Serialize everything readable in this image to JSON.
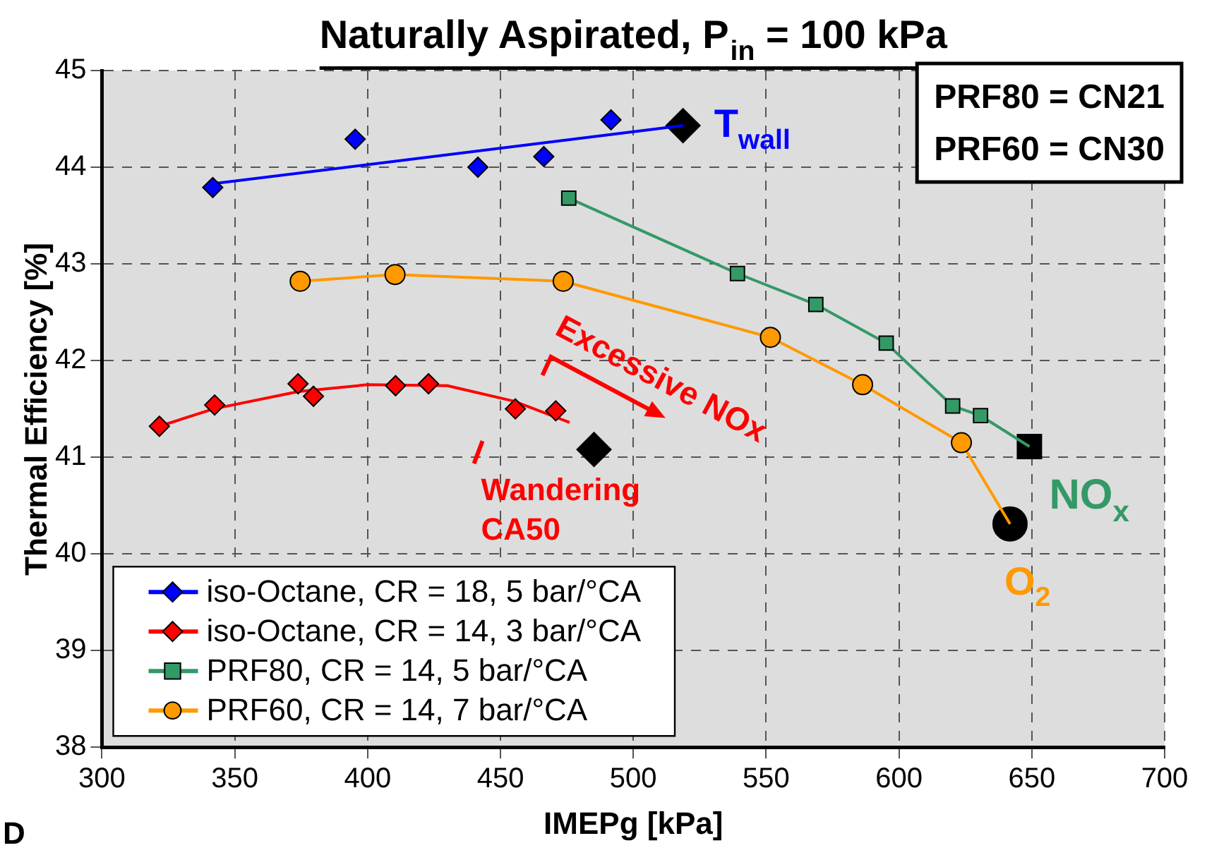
{
  "chart_data": {
    "type": "line",
    "title": "Naturally Aspirated, P$_{in}$ = 100 kPa",
    "xlabel": "IMEPg [kPa]",
    "ylabel": "Thermal Efficiency [%]",
    "xlim": [
      300,
      700
    ],
    "xticks": [
      300,
      350,
      400,
      450,
      500,
      550,
      600,
      650,
      700
    ],
    "ylim": [
      38,
      45
    ],
    "yticks": [
      38,
      39,
      40,
      41,
      42,
      43,
      44,
      45
    ],
    "grid": true,
    "legend": "bottom left",
    "series": [
      {
        "name": "iso-Octane, CR = 18, 5 bar/°CA",
        "type": "scatter",
        "marker": "diamond",
        "color": "#0000ff",
        "x": [
          341.7,
          395.3,
          441.5,
          466.3,
          491.6
        ],
        "values": [
          43.79,
          44.29,
          44.0,
          44.11,
          44.49
        ]
      },
      {
        "marker": "none",
        "color": "#0000ff",
        "x": [
          342,
          518.7
        ],
        "values": [
          43.83,
          44.43
        ]
      },
      {
        "name": "iso-Octane, CR = 14, 3 bar/°CA",
        "type": "scatter",
        "marker": "diamond",
        "color": "#ff0000",
        "x": [
          321.6,
          342.4,
          373.8,
          379.6,
          410.5,
          422.9,
          455.6,
          470.8
        ],
        "values": [
          41.32,
          41.54,
          41.76,
          41.63,
          41.74,
          41.76,
          41.5,
          41.48
        ]
      },
      {
        "marker": "none",
        "color": "#ff0000",
        "x": [
          321.6,
          342,
          374,
          400,
          430,
          455,
          476
        ],
        "values": [
          41.32,
          41.5,
          41.68,
          41.75,
          41.74,
          41.58,
          41.36
        ]
      },
      {
        "name": "PRF80, CR = 14, 5 bar/°CA",
        "marker": "square",
        "color": "#339966",
        "x": [
          475.7,
          539.2,
          568.7,
          595.2,
          620.2,
          630.7
        ],
        "values": [
          43.68,
          42.9,
          42.58,
          42.18,
          41.53,
          41.43
        ]
      },
      {
        "marker": "none",
        "color": "#339966",
        "x": [
          630.7,
          649.1
        ],
        "values": [
          41.43,
          41.11
        ]
      },
      {
        "name": "PRF60, CR = 14, 7 bar/°CA",
        "marker": "circle",
        "color": "#ff9900",
        "x": [
          374.6,
          410.3,
          473.6,
          551.6,
          586.3,
          623.5
        ],
        "values": [
          42.82,
          42.89,
          42.82,
          42.24,
          41.75,
          41.15
        ]
      },
      {
        "marker": "none",
        "color": "#ff9900",
        "x": [
          623.5,
          641.8
        ],
        "values": [
          41.15,
          40.31
        ]
      },
      {
        "type": "scatter",
        "marker": "diamond",
        "color": "#000000",
        "x": [
          518.7,
          485.2
        ],
        "values": [
          44.43,
          41.08
        ]
      },
      {
        "type": "scatter",
        "marker": "square",
        "color": "#000000",
        "x": [
          649.1
        ],
        "values": [
          41.11
        ]
      },
      {
        "type": "scatter",
        "marker": "circle",
        "color": "#000000",
        "x": [
          641.8
        ],
        "values": [
          40.31
        ]
      }
    ],
    "annotations": [
      {
        "text": "T$_{wall}$",
        "x": 518.7,
        "y": 44.43
      },
      {
        "text": "NO$_{x}$",
        "x": 649.1,
        "y": 41.11
      },
      {
        "text": "O$_{2}$",
        "x": 641.8,
        "y": 40.31
      },
      {
        "text": "Wandering CA50",
        "x": 485.2,
        "y": 41.08
      },
      "Excessive NOx",
      "PRF80 = CN21",
      "PRF60 = CN30",
      "D"
    ]
  }
}
